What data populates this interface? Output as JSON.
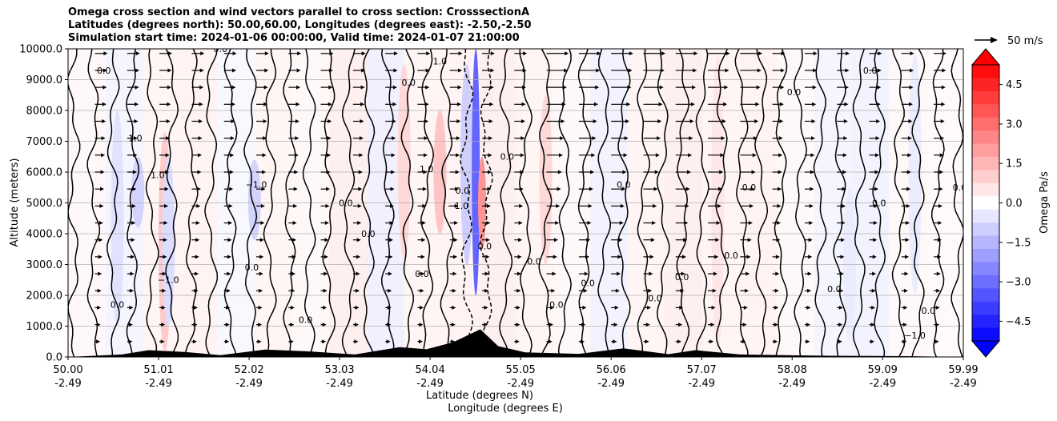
{
  "title_lines": [
    "Omega cross section and wind vectors parallel to cross section: CrosssectionA",
    "Latitudes (degrees north): 50.00,60.00, Longitudes (degrees east): -2.50,-2.50",
    "Simulation start time: 2024-01-06 00:00:00, Valid time: 2024-01-07 21:00:00"
  ],
  "chart_data": {
    "type": "contour",
    "title": "Omega cross section and wind vectors parallel to cross section: CrosssectionA",
    "ylabel": "Altitude (meters)",
    "xlabel_lines": [
      "Latitude (degrees N)",
      "Longitude (degrees E)"
    ],
    "ylim": [
      0,
      10000
    ],
    "xlim": [
      50.0,
      59.99
    ],
    "y_ticks": [
      "0.0",
      "1000.0",
      "2000.0",
      "3000.0",
      "4000.0",
      "5000.0",
      "6000.0",
      "7000.0",
      "8000.0",
      "9000.0",
      "10000.0"
    ],
    "y_tick_values": [
      0,
      1000,
      2000,
      3000,
      4000,
      5000,
      6000,
      7000,
      8000,
      9000,
      10000
    ],
    "x_ticks": [
      {
        "lat": "50.00",
        "lon": "-2.49",
        "value": 50.0
      },
      {
        "lat": "51.01",
        "lon": "-2.49",
        "value": 51.01
      },
      {
        "lat": "52.02",
        "lon": "-2.49",
        "value": 52.02
      },
      {
        "lat": "53.03",
        "lon": "-2.49",
        "value": 53.03
      },
      {
        "lat": "54.04",
        "lon": "-2.49",
        "value": 54.04
      },
      {
        "lat": "55.05",
        "lon": "-2.49",
        "value": 55.05
      },
      {
        "lat": "56.06",
        "lon": "-2.49",
        "value": 56.06
      },
      {
        "lat": "57.07",
        "lon": "-2.49",
        "value": 57.07
      },
      {
        "lat": "58.08",
        "lon": "-2.49",
        "value": 58.08
      },
      {
        "lat": "59.09",
        "lon": "-2.49",
        "value": 59.09
      },
      {
        "lat": "59.99",
        "lon": "-2.49",
        "value": 59.99
      }
    ],
    "grid": "horizontal",
    "colorbar": {
      "label": "Omega Pa/s",
      "range": [
        -5.25,
        5.25
      ],
      "tick_labels": [
        "4.5",
        "3.0",
        "1.5",
        "0.0",
        "−1.5",
        "−3.0",
        "−4.5"
      ],
      "tick_values": [
        4.5,
        3.0,
        1.5,
        0.0,
        -1.5,
        -3.0,
        -4.5
      ],
      "cmap": "bwr",
      "extend": "both"
    },
    "quiver_key": {
      "label": "50 m/s",
      "value": 50
    },
    "contour_labels": [
      "0.0",
      "1.0",
      "−1.0"
    ],
    "omega_columns": [
      {
        "x": 50.55,
        "y0": 1000,
        "y1": 8000,
        "value": -0.6
      },
      {
        "x": 50.78,
        "y0": 4200,
        "y1": 6500,
        "value": -0.9
      },
      {
        "x": 51.08,
        "y0": 200,
        "y1": 7300,
        "value": 1.1
      },
      {
        "x": 51.12,
        "y0": 1000,
        "y1": 6500,
        "value": -0.7
      },
      {
        "x": 52.08,
        "y0": 3800,
        "y1": 6400,
        "value": -0.9
      },
      {
        "x": 53.75,
        "y0": 3200,
        "y1": 9500,
        "value": 0.8
      },
      {
        "x": 54.15,
        "y0": 4000,
        "y1": 8000,
        "value": 1.2
      },
      {
        "x": 54.45,
        "y0": 3000,
        "y1": 9500,
        "value": -1.0
      },
      {
        "x": 54.55,
        "y0": 2000,
        "y1": 10000,
        "value": -3.2
      },
      {
        "x": 54.62,
        "y0": 3500,
        "y1": 6500,
        "value": 2.2
      },
      {
        "x": 55.33,
        "y0": 3000,
        "y1": 8500,
        "value": 0.8
      },
      {
        "x": 57.25,
        "y0": 200,
        "y1": 9800,
        "value": 0.5
      },
      {
        "x": 58.72,
        "y0": 500,
        "y1": 5500,
        "value": -0.4
      },
      {
        "x": 59.45,
        "y0": 2000,
        "y1": 9800,
        "value": -0.4
      }
    ],
    "wind_vectors": {
      "direction": "toward increasing latitude",
      "max_speed_ms": 40,
      "stronger_aloft": true,
      "strong_region_lat": [
        55.0,
        57.5
      ]
    },
    "terrain": {
      "lat": [
        50.6,
        50.9,
        51.3,
        51.7,
        52.2,
        52.7,
        53.2,
        53.7,
        54.0,
        54.3,
        54.6,
        54.8,
        55.1,
        55.7,
        56.2,
        56.7,
        57.0,
        57.5,
        58.0,
        58.5,
        59.0,
        59.5
      ],
      "height_m": [
        80,
        220,
        160,
        60,
        240,
        180,
        80,
        320,
        250,
        480,
        900,
        350,
        150,
        100,
        280,
        90,
        220,
        80,
        60,
        40,
        30,
        20
      ]
    }
  }
}
